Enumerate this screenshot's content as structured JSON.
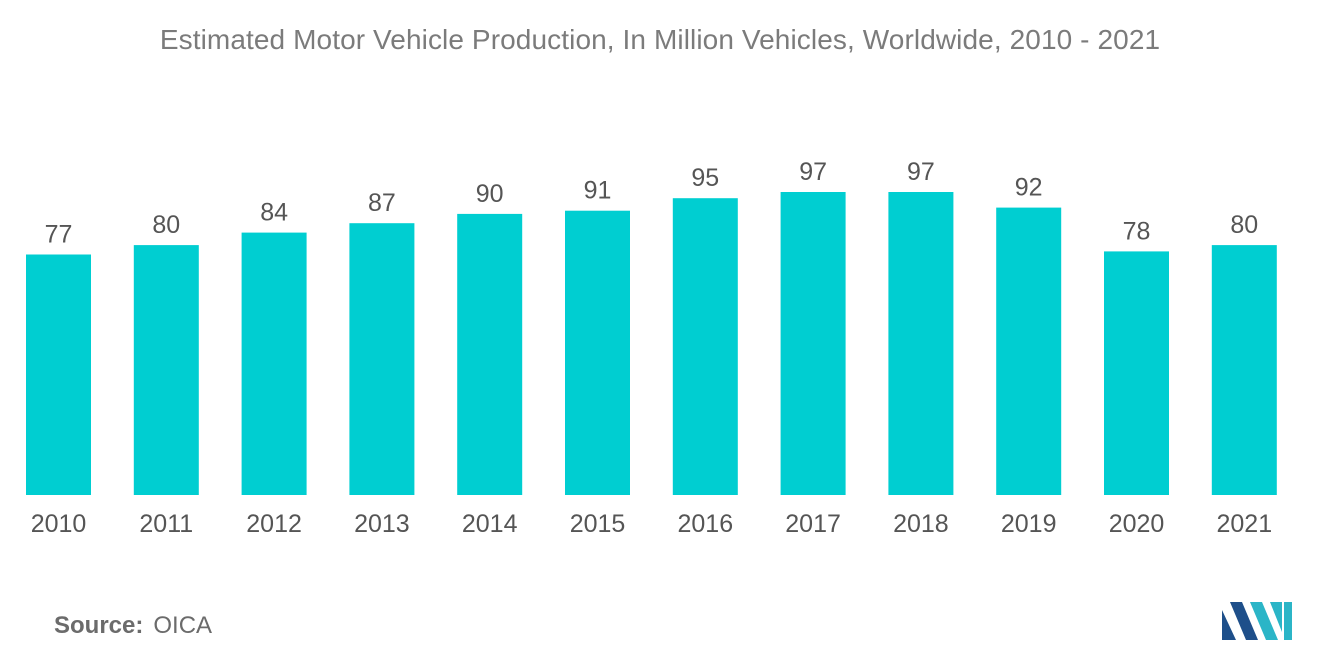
{
  "chart_data": {
    "type": "bar",
    "title": "Estimated Motor Vehicle Production, In Million Vehicles, Worldwide, 2010 - 2021",
    "categories": [
      "2010",
      "2011",
      "2012",
      "2013",
      "2014",
      "2015",
      "2016",
      "2017",
      "2018",
      "2019",
      "2020",
      "2021"
    ],
    "values": [
      77,
      80,
      84,
      87,
      90,
      91,
      95,
      97,
      97,
      92,
      78,
      80
    ],
    "xlabel": "",
    "ylabel": "",
    "ylim": [
      0,
      97
    ],
    "grid": false,
    "legend": "none",
    "bar_color": "#00ced1"
  },
  "source": {
    "label": "Source:",
    "value": "OICA"
  },
  "logo": {
    "icon": "mordor-intelligence-logo-icon",
    "colors": [
      "#1e4f8a",
      "#2bb5c7"
    ]
  }
}
